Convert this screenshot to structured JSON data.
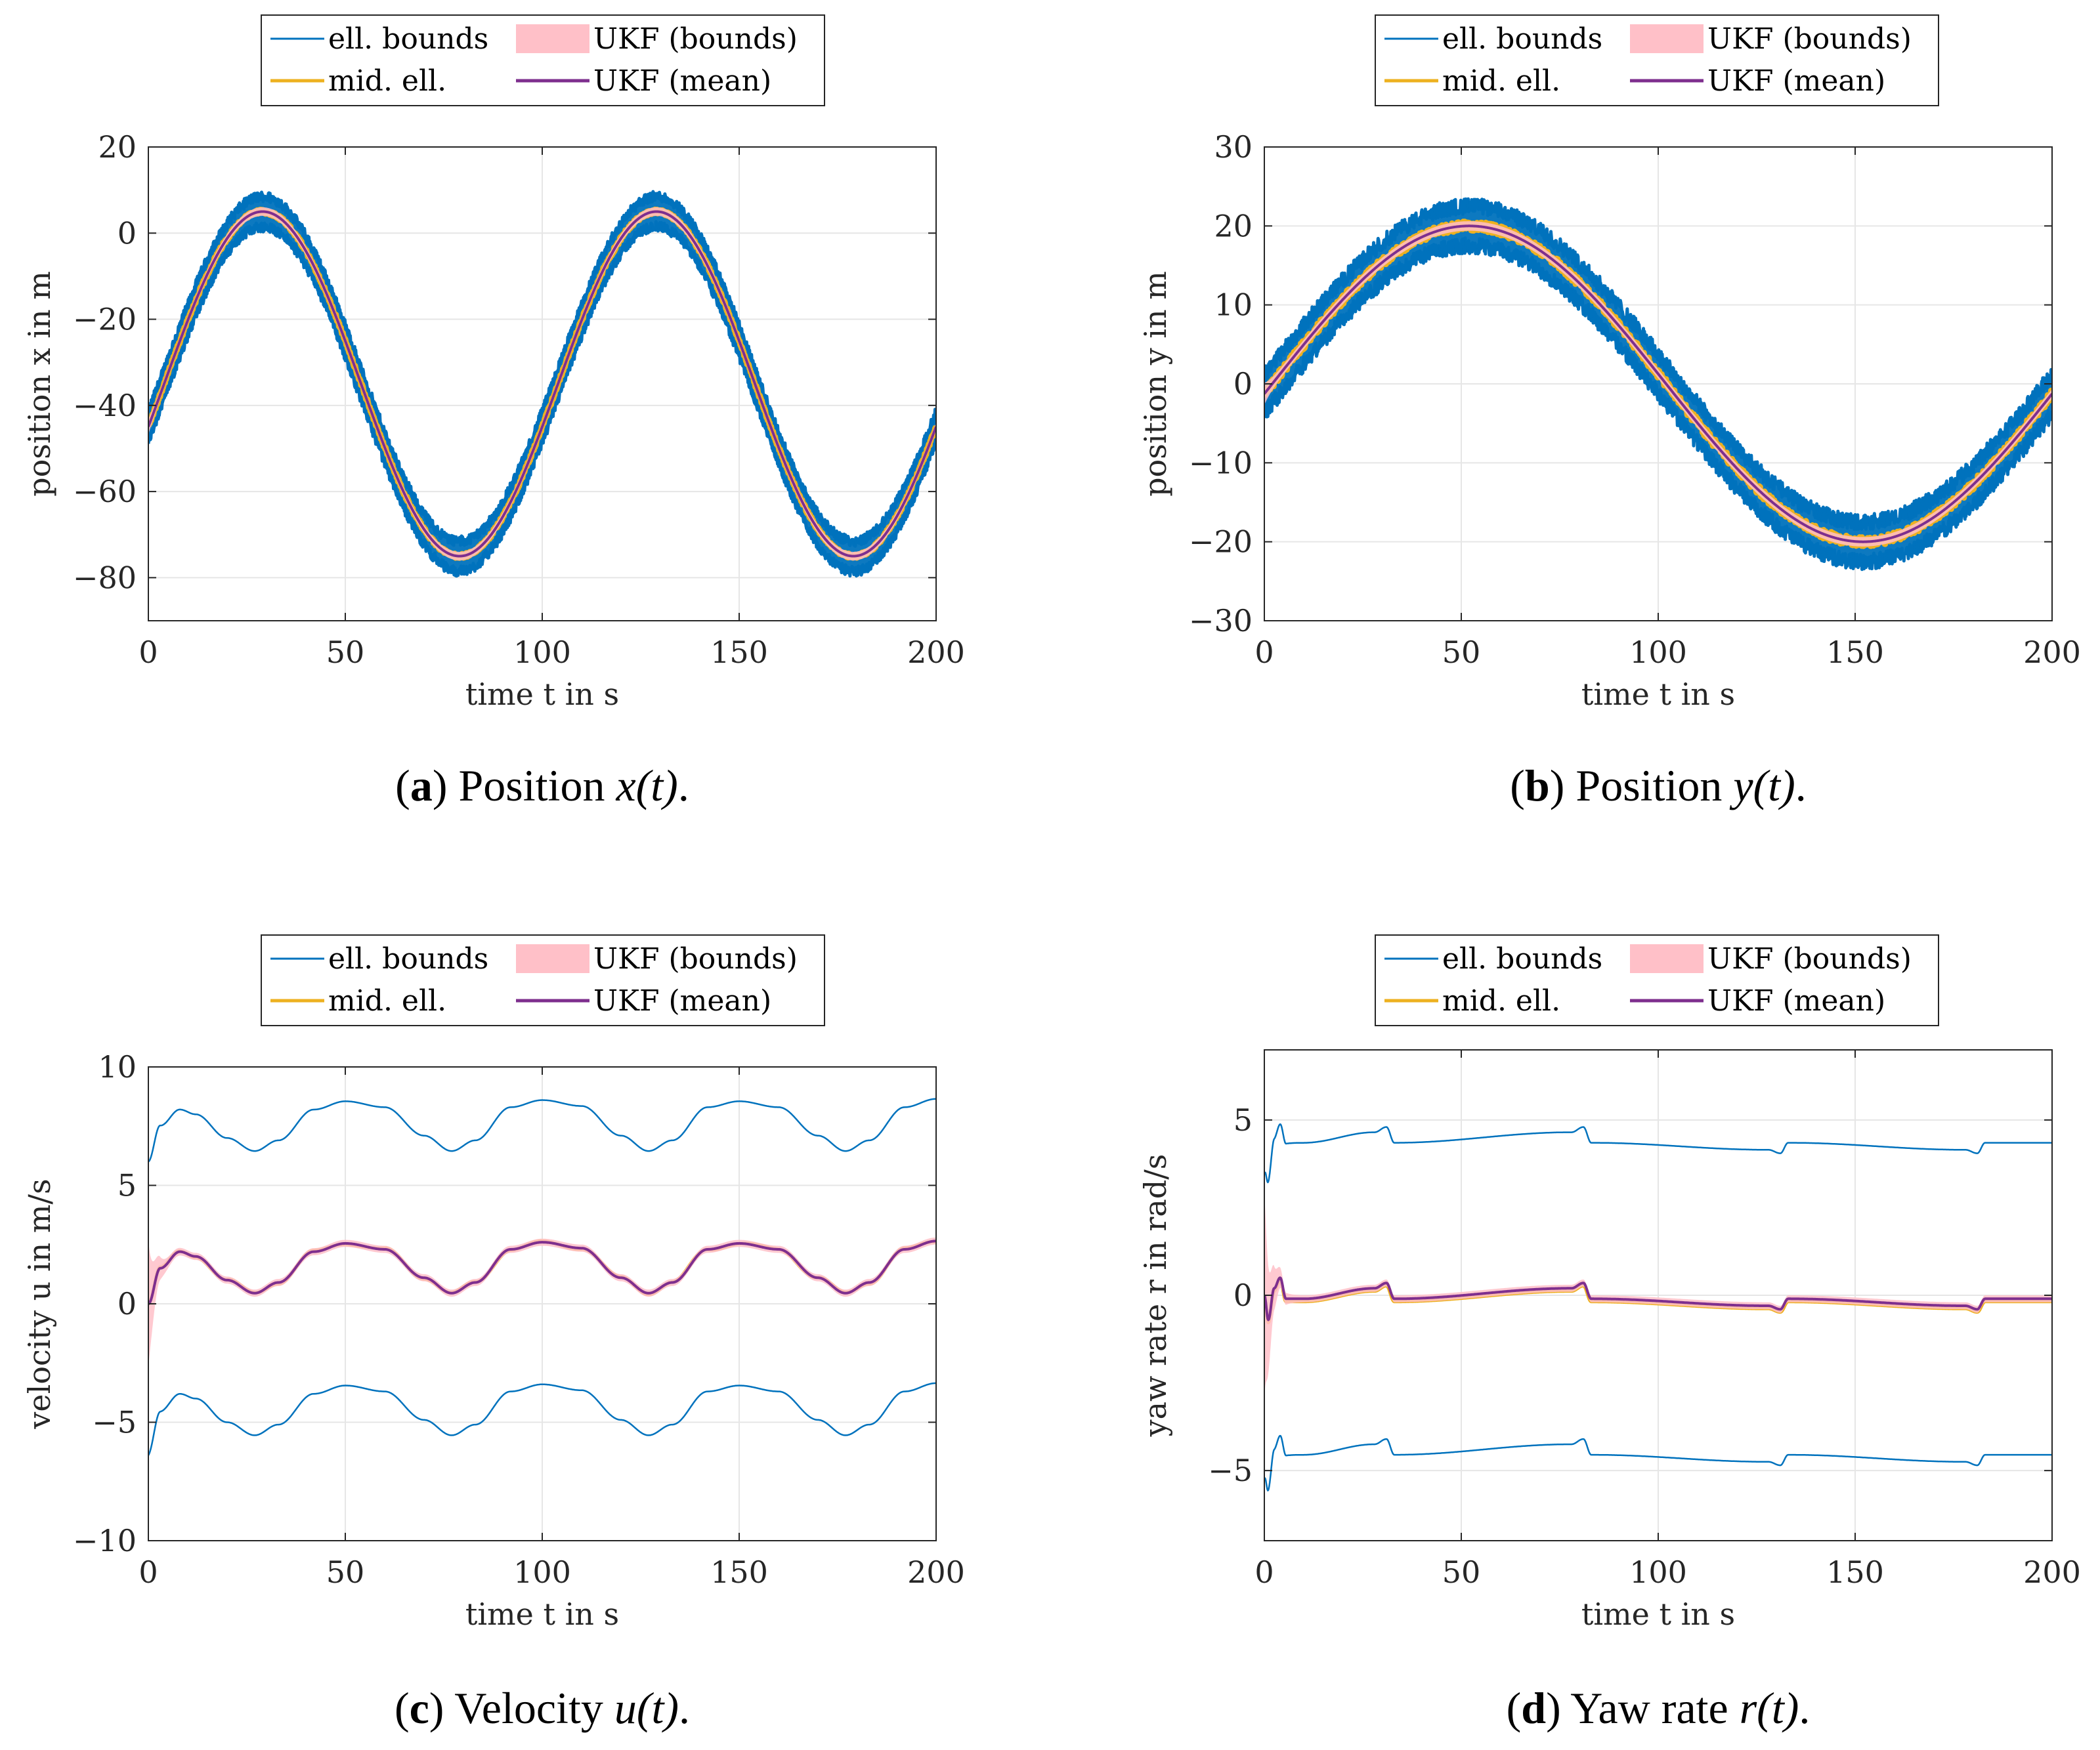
{
  "colors": {
    "ell_bounds": "#0072BD",
    "mid_ell": "#EDB120",
    "ukf_bounds": "#FFC0C8",
    "ukf_mean": "#7E2F8E",
    "grid": "#e6e6e6",
    "axis": "#262626"
  },
  "legend": {
    "ell_bounds": "ell. bounds",
    "mid_ell": "mid. ell.",
    "ukf_bounds": "UKF (bounds)",
    "ukf_mean": "UKF (mean)"
  },
  "chart_data": [
    {
      "id": "a",
      "type": "line",
      "caption_letter": "a",
      "caption_text": "Position",
      "caption_var": "x(t)",
      "caption_end": ".",
      "xlabel": "time t in s",
      "ylabel": "position x in m",
      "xlim": [
        0,
        200
      ],
      "ylim": [
        -90,
        20
      ],
      "xticks": [
        0,
        50,
        100,
        150,
        200
      ],
      "yticks": [
        -80,
        -60,
        -40,
        -20,
        0,
        20
      ],
      "ytick_labels": [
        "−80",
        "−60",
        "−40",
        "−20",
        "0",
        "20"
      ],
      "grid": true,
      "legend_position": "top",
      "signal": {
        "kind": "sine",
        "offset": -35,
        "amplitude": 40,
        "period": 100,
        "peak_t": 29
      },
      "series": [
        {
          "name": "ell. bounds (upper)",
          "delta": 3.5,
          "noise": 1.2
        },
        {
          "name": "ell. bounds (lower)",
          "delta": -3.5,
          "noise": 1.2
        },
        {
          "name": "mid. ell.",
          "delta": 0,
          "noise": 0.5
        },
        {
          "name": "UKF (bounds)",
          "band": 1.0
        },
        {
          "name": "UKF (mean)",
          "delta": 0
        }
      ]
    },
    {
      "id": "b",
      "type": "line",
      "caption_letter": "b",
      "caption_text": "Position",
      "caption_var": "y(t)",
      "caption_end": ".",
      "xlabel": "time t in s",
      "ylabel": "position y in m",
      "xlim": [
        0,
        200
      ],
      "ylim": [
        -30,
        30
      ],
      "xticks": [
        0,
        50,
        100,
        150,
        200
      ],
      "yticks": [
        -30,
        -20,
        -10,
        0,
        10,
        20,
        30
      ],
      "ytick_labels": [
        "−30",
        "−20",
        "−10",
        "0",
        "10",
        "20",
        "30"
      ],
      "grid": true,
      "legend_position": "top",
      "signal": {
        "kind": "sine",
        "offset": 0,
        "amplitude": 20,
        "period": 200,
        "peak_t": 52
      },
      "series": [
        {
          "name": "ell. bounds (upper)",
          "delta": 2.5,
          "noise": 1.0
        },
        {
          "name": "ell. bounds (lower)",
          "delta": -2.5,
          "noise": 1.0
        },
        {
          "name": "mid. ell.",
          "delta": 0,
          "noise": 0.6
        },
        {
          "name": "UKF (bounds)",
          "band": 0.6
        },
        {
          "name": "UKF (mean)",
          "delta": 0
        }
      ]
    },
    {
      "id": "c",
      "type": "line",
      "caption_letter": "c",
      "caption_text": "Velocity",
      "caption_var": "u(t)",
      "caption_end": ".",
      "xlabel": "time t in s",
      "ylabel": "velocity u in m/s",
      "xlim": [
        0,
        200
      ],
      "ylim": [
        -10,
        10
      ],
      "xticks": [
        0,
        50,
        100,
        150,
        200
      ],
      "yticks": [
        -10,
        -5,
        0,
        5,
        10
      ],
      "ytick_labels": [
        "−10",
        "−5",
        "0",
        "5",
        "10"
      ],
      "grid": true,
      "legend_position": "top",
      "signal": {
        "kind": "speed",
        "points": [
          [
            0,
            0
          ],
          [
            3,
            1.5
          ],
          [
            8,
            2.2
          ],
          [
            12,
            2.0
          ],
          [
            20,
            1.0
          ],
          [
            27,
            0.45
          ],
          [
            33,
            0.9
          ],
          [
            42,
            2.2
          ],
          [
            50,
            2.55
          ],
          [
            60,
            2.3
          ],
          [
            70,
            1.1
          ],
          [
            77,
            0.45
          ],
          [
            83,
            0.9
          ],
          [
            92,
            2.3
          ],
          [
            100,
            2.6
          ],
          [
            110,
            2.35
          ],
          [
            120,
            1.1
          ],
          [
            127,
            0.45
          ],
          [
            133,
            0.9
          ],
          [
            142,
            2.3
          ],
          [
            150,
            2.55
          ],
          [
            160,
            2.3
          ],
          [
            170,
            1.1
          ],
          [
            177,
            0.45
          ],
          [
            183,
            0.9
          ],
          [
            192,
            2.3
          ],
          [
            200,
            2.65
          ]
        ]
      },
      "series": [
        {
          "name": "ell. bounds (upper)",
          "delta": 6.0
        },
        {
          "name": "ell. bounds (lower)",
          "delta": -6.0
        },
        {
          "name": "mid. ell.",
          "delta": 0
        },
        {
          "name": "UKF (bounds)",
          "band": 0.15
        },
        {
          "name": "UKF (mean)",
          "delta": 0
        }
      ]
    },
    {
      "id": "d",
      "type": "line",
      "caption_letter": "d",
      "caption_text": "Yaw rate",
      "caption_var": "r(t)",
      "caption_end": ".",
      "xlabel": "time t in s",
      "ylabel": "yaw rate r in rad/s",
      "xlim": [
        0,
        200
      ],
      "ylim": [
        -7,
        7
      ],
      "xticks": [
        0,
        50,
        100,
        150,
        200
      ],
      "yticks": [
        -5,
        0,
        5
      ],
      "ytick_labels": [
        "−5",
        "0",
        "5"
      ],
      "grid": true,
      "legend_position": "top",
      "signal": {
        "kind": "yaw",
        "points": [
          [
            0,
            0
          ],
          [
            1,
            -0.7
          ],
          [
            2.5,
            0.2
          ],
          [
            4,
            0.5
          ],
          [
            5.5,
            -0.1
          ],
          [
            10,
            -0.1
          ],
          [
            28,
            0.2
          ],
          [
            31,
            0.35
          ],
          [
            33,
            -0.1
          ],
          [
            78,
            0.2
          ],
          [
            81,
            0.35
          ],
          [
            83,
            -0.1
          ],
          [
            128,
            -0.3
          ],
          [
            131,
            -0.4
          ],
          [
            133,
            -0.1
          ],
          [
            178,
            -0.3
          ],
          [
            181,
            -0.4
          ],
          [
            183,
            -0.1
          ],
          [
            200,
            -0.1
          ]
        ]
      },
      "series": [
        {
          "name": "ell. bounds (upper)",
          "delta": 4.45
        },
        {
          "name": "ell. bounds (lower)",
          "delta": -4.45
        },
        {
          "name": "mid. ell.",
          "delta": -0.08
        },
        {
          "name": "UKF (bounds)",
          "band": 0.1
        },
        {
          "name": "UKF (mean)",
          "delta": 0
        }
      ]
    }
  ]
}
